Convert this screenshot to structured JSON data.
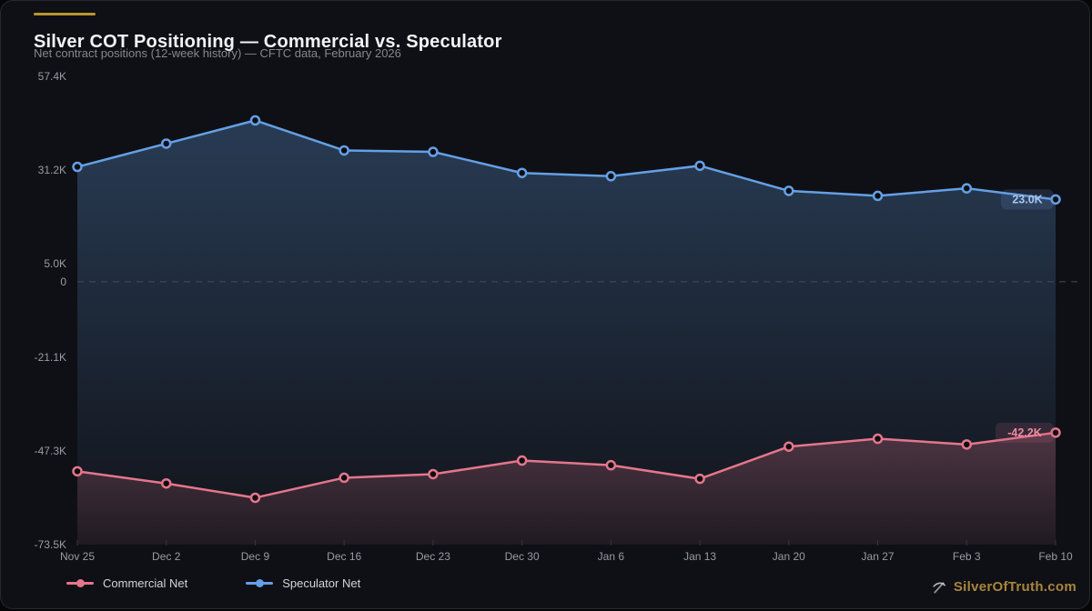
{
  "header": {
    "title": "Silver COT Positioning — Commercial vs. Speculator",
    "subtitle": "Net contract positions (12-week history) — CFTC data, February 2026"
  },
  "legend": [
    {
      "label": "Commercial Net",
      "color": "#e5768c"
    },
    {
      "label": "Speculator Net",
      "color": "#64a0e6"
    }
  ],
  "watermark": {
    "label": "SilverOfTruth.com",
    "icon": "pickaxe-icon",
    "color": "#a8853e"
  },
  "colors": {
    "accent_gold": "#b8952f",
    "card_bg": "#0f1015",
    "title": "#f2f3f5",
    "subtitle": "#84878e",
    "axis_label": "#989ca4",
    "zero_line": "#474c55",
    "tick_mark": "#33363d",
    "commercial": "#e5768c",
    "speculator": "#64a0e6",
    "spec_badge_bg": "rgba(100,140,200,0.20)",
    "spec_badge_text": "#a7c7ef",
    "comm_badge_bg": "rgba(190,95,120,0.18)",
    "comm_badge_text": "#ef8ca0"
  },
  "chart_data": {
    "type": "line",
    "title": "Silver COT Positioning — Commercial vs. Speculator",
    "subtitle": "Net contract positions (12-week history) — CFTC data, February 2026",
    "unit": "thousands of contracts (K)",
    "x": [
      "Nov 25",
      "Dec 2",
      "Dec 9",
      "Dec 16",
      "Dec 23",
      "Dec 30",
      "Jan 6",
      "Jan 13",
      "Jan 20",
      "Jan 27",
      "Feb 3",
      "Feb 10"
    ],
    "series": [
      {
        "name": "Speculator Net",
        "color": "#64a0e6",
        "values": [
          32.1,
          38.6,
          45.1,
          36.7,
          36.3,
          30.4,
          29.5,
          32.4,
          25.4,
          24.0,
          26.1,
          23.0
        ],
        "end_label": "23.0K"
      },
      {
        "name": "Commercial Net",
        "color": "#e5768c",
        "values": [
          -53.0,
          -56.4,
          -60.4,
          -54.8,
          -53.8,
          -50.0,
          -51.3,
          -55.1,
          -46.1,
          -43.9,
          -45.5,
          -42.2
        ],
        "end_label": "-42.2K"
      }
    ],
    "y_ticks": [
      {
        "label": "57.4K",
        "value": 57.4
      },
      {
        "label": "31.2K",
        "value": 31.2
      },
      {
        "label": "5.0K",
        "value": 5.0
      },
      {
        "label": "0",
        "value": 0
      },
      {
        "label": "-21.1K",
        "value": -21.1
      },
      {
        "label": "-47.3K",
        "value": -47.3
      },
      {
        "label": "-73.5K",
        "value": -73.5
      }
    ],
    "ylim": [
      -73.5,
      57.4
    ],
    "zero_line_dashed": true,
    "grid": false,
    "area_fill": true,
    "legend_position": "bottom"
  }
}
